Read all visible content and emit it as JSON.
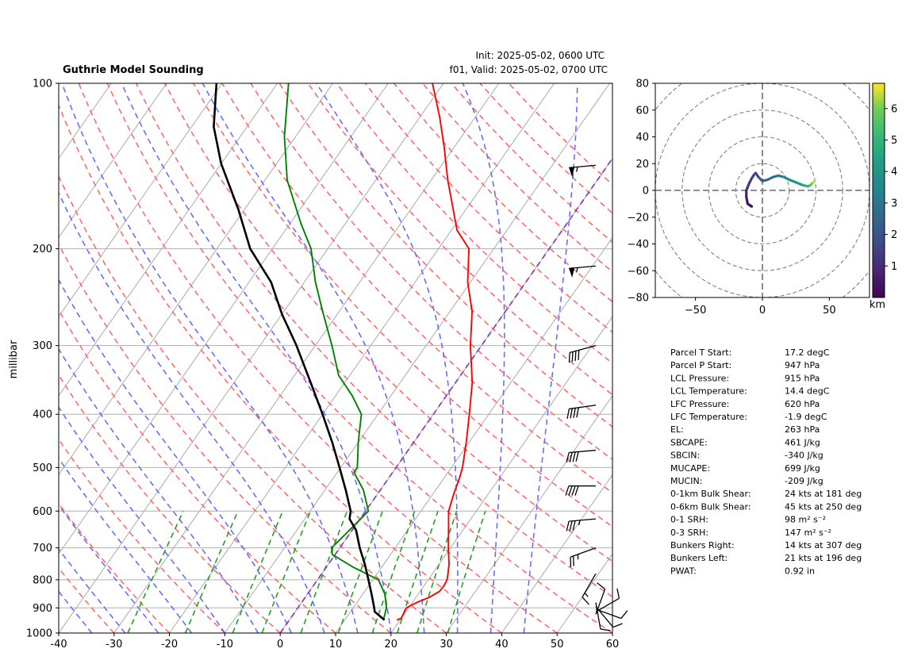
{
  "header": {
    "title": "Guthrie Model Sounding",
    "init": "Init: 2025-05-02, 0600 UTC",
    "valid": "f01, Valid: 2025-05-02, 0700 UTC"
  },
  "chart_data": [
    {
      "type": "line",
      "subtype": "skew-t log-p",
      "ylabel": "millibar",
      "xlabel": "",
      "xlim": [
        -40,
        60
      ],
      "ylim": [
        1000,
        100
      ],
      "y_scale": "log",
      "x_ticks": [
        "-40",
        "-30",
        "-20",
        "-10",
        "0",
        "10",
        "20",
        "30",
        "40",
        "50",
        "60"
      ],
      "y_ticks": [
        "1000",
        "900",
        "800",
        "700",
        "600",
        "500",
        "400",
        "300",
        "200",
        "100"
      ],
      "grid": "horizontal isobars",
      "colors": {
        "temperature": "#ff0000",
        "dewpoint": "#008000",
        "parcel": "#000000",
        "dry_adiabats": "#ff6b6b",
        "moist_adiabats": "#6b6bff",
        "mixing_ratio": "#22a022",
        "isotherms": "#aaaaaa",
        "zero_isotherm": "#8a3fbf"
      },
      "series": [
        {
          "key": "temperature",
          "points": [
            [
              947,
              19.4
            ],
            [
              940,
              20
            ],
            [
              900,
              19.6
            ],
            [
              880,
              20.8
            ],
            [
              860,
              22.5
            ],
            [
              840,
              23.5
            ],
            [
              820,
              23.6
            ],
            [
              800,
              23.4
            ],
            [
              780,
              22.8
            ],
            [
              750,
              21.8
            ],
            [
              700,
              19.6
            ],
            [
              650,
              17.4
            ],
            [
              600,
              15
            ],
            [
              560,
              13.8
            ],
            [
              520,
              12.7
            ],
            [
              500,
              12
            ],
            [
              450,
              9.5
            ],
            [
              400,
              6.5
            ],
            [
              350,
              3
            ],
            [
              300,
              -2
            ],
            [
              260,
              -6
            ],
            [
              230,
              -10.5
            ],
            [
              200,
              -14.5
            ],
            [
              185,
              -19
            ],
            [
              150,
              -27
            ],
            [
              130,
              -32
            ],
            [
              115,
              -36.5
            ],
            [
              100,
              -42
            ]
          ]
        },
        {
          "key": "dewpoint",
          "points": [
            [
              947,
              17
            ],
            [
              900,
              16
            ],
            [
              850,
              14
            ],
            [
              800,
              11
            ],
            [
              760,
              5
            ],
            [
              720,
              -0.5
            ],
            [
              700,
              -1.5
            ],
            [
              650,
              -0.5
            ],
            [
              600,
              0.5
            ],
            [
              550,
              -3
            ],
            [
              510,
              -7
            ],
            [
              500,
              -7
            ],
            [
              450,
              -10
            ],
            [
              400,
              -13
            ],
            [
              370,
              -17
            ],
            [
              340,
              -22
            ],
            [
              300,
              -27
            ],
            [
              260,
              -33
            ],
            [
              230,
              -38
            ],
            [
              200,
              -43
            ],
            [
              180,
              -48
            ],
            [
              150,
              -56
            ],
            [
              125,
              -62
            ],
            [
              100,
              -68
            ]
          ]
        },
        {
          "key": "parcel",
          "points": [
            [
              947,
              17.2
            ],
            [
              915,
              14.4
            ],
            [
              900,
              13.8
            ],
            [
              850,
              11.6
            ],
            [
              800,
              9.2
            ],
            [
              750,
              6.6
            ],
            [
              700,
              3.6
            ],
            [
              650,
              0.7
            ],
            [
              620,
              -1.9
            ],
            [
              600,
              -2.7
            ],
            [
              550,
              -6.2
            ],
            [
              500,
              -10.2
            ],
            [
              450,
              -14.7
            ],
            [
              400,
              -20
            ],
            [
              350,
              -26.2
            ],
            [
              300,
              -33.4
            ],
            [
              263,
              -40
            ],
            [
              230,
              -46
            ],
            [
              200,
              -54
            ],
            [
              170,
              -61
            ],
            [
              140,
              -70
            ],
            [
              120,
              -76
            ],
            [
              100,
              -81
            ]
          ]
        }
      ]
    },
    {
      "type": "line",
      "subtype": "hodograph",
      "xlim": [
        -80,
        80
      ],
      "ylim": [
        -80,
        80
      ],
      "x_ticks": [
        "−50",
        "0",
        "50"
      ],
      "y_ticks": [
        "80",
        "60",
        "40",
        "20",
        "0",
        "−20",
        "−40",
        "−60",
        "−80"
      ],
      "rings": [
        20,
        40,
        60,
        80,
        100
      ],
      "colorbar_label": "km",
      "colorbar_ticks": [
        "1",
        "2",
        "3",
        "4",
        "5",
        "6"
      ],
      "colorbar_range": [
        0,
        6.8
      ],
      "points": [
        [
          -8,
          -12,
          0
        ],
        [
          -11,
          -10,
          0.3
        ],
        [
          -12,
          -5,
          0.6
        ],
        [
          -12,
          0,
          0.9
        ],
        [
          -10,
          5,
          1.2
        ],
        [
          -8,
          9,
          1.5
        ],
        [
          -6,
          12,
          1.8
        ],
        [
          -5,
          13,
          1.9
        ],
        [
          -3,
          10,
          2.0
        ],
        [
          0,
          7,
          2.1
        ],
        [
          4,
          8,
          2.4
        ],
        [
          8,
          10,
          2.7
        ],
        [
          12,
          11,
          3.0
        ],
        [
          16,
          10,
          3.3
        ],
        [
          20,
          8,
          3.6
        ],
        [
          25,
          6,
          4.0
        ],
        [
          30,
          4,
          4.4
        ],
        [
          34,
          3,
          4.8
        ],
        [
          36,
          4,
          5.4
        ],
        [
          38,
          6,
          6.2
        ],
        [
          39,
          7,
          6.7
        ]
      ]
    }
  ],
  "wind_barbs": [
    {
      "pressure": 141,
      "speed": 55,
      "dir": 265
    },
    {
      "pressure": 215,
      "speed": 55,
      "dir": 265
    },
    {
      "pressure": 300,
      "speed": 40,
      "dir": 255
    },
    {
      "pressure": 385,
      "speed": 40,
      "dir": 262
    },
    {
      "pressure": 465,
      "speed": 40,
      "dir": 265
    },
    {
      "pressure": 540,
      "speed": 40,
      "dir": 270
    },
    {
      "pressure": 620,
      "speed": 35,
      "dir": 265
    },
    {
      "pressure": 700,
      "speed": 25,
      "dir": 250
    },
    {
      "pressure": 780,
      "speed": 15,
      "dir": 210
    },
    {
      "pressure": 880,
      "speed": 10,
      "dir": 170
    },
    {
      "pressure": 895,
      "speed": 10,
      "dir": 140
    },
    {
      "pressure": 905,
      "speed": 10,
      "dir": 110
    },
    {
      "pressure": 915,
      "speed": 10,
      "dir": 60
    },
    {
      "pressure": 925,
      "speed": 10,
      "dir": 20
    }
  ],
  "indices": [
    {
      "label": "Parcel T Start:",
      "value": "17.2 degC"
    },
    {
      "label": "Parcel P Start:",
      "value": "947 hPa"
    },
    {
      "label": "LCL Pressure:",
      "value": "915 hPa"
    },
    {
      "label": "LCL Temperature:",
      "value": "14.4 degC"
    },
    {
      "label": "LFC Pressure:",
      "value": "620 hPa"
    },
    {
      "label": "LFC Temperature:",
      "value": "-1.9 degC"
    },
    {
      "label": "EL:",
      "value": "263 hPa"
    },
    {
      "label": "SBCAPE:",
      "value": "461 J/kg"
    },
    {
      "label": "SBCIN:",
      "value": "-340 J/kg"
    },
    {
      "label": "MUCAPE:",
      "value": "699 J/kg"
    },
    {
      "label": "MUCIN:",
      "value": "-209 J/kg"
    },
    {
      "label": "0-1km Bulk Shear:",
      "value": "24 kts at 181 deg"
    },
    {
      "label": "0-6km Bulk Shear:",
      "value": "45 kts at 250 deg"
    },
    {
      "label": "0-1 SRH:",
      "value": "98 m² s⁻²"
    },
    {
      "label": "0-3 SRH:",
      "value": "147 m² s⁻²"
    },
    {
      "label": "Bunkers Right:",
      "value": "14 kts at 307 deg"
    },
    {
      "label": "Bunkers Left:",
      "value": "21 kts at 196 deg"
    },
    {
      "label": "PWAT:",
      "value": "0.92 in"
    }
  ]
}
